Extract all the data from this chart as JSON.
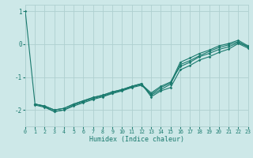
{
  "xlabel": "Humidex (Indice chaleur)",
  "x_ticks": [
    0,
    1,
    2,
    3,
    4,
    5,
    6,
    7,
    8,
    9,
    10,
    11,
    12,
    13,
    14,
    15,
    16,
    17,
    18,
    19,
    20,
    21,
    22,
    23
  ],
  "ylim": [
    -2.5,
    1.2
  ],
  "xlim": [
    0,
    23
  ],
  "bg_color": "#cde8e8",
  "grid_color": "#aed0d0",
  "line_color": "#1a7a6e",
  "lines": [
    {
      "x": [
        0,
        1,
        2,
        3,
        4,
        5,
        6,
        7,
        8,
        9,
        10,
        11,
        12,
        13,
        14,
        15,
        16,
        17,
        18,
        19,
        20,
        21,
        22,
        23
      ],
      "y": [
        1.0,
        -1.82,
        -1.9,
        -2.05,
        -2.0,
        -1.85,
        -1.75,
        -1.65,
        -1.58,
        -1.48,
        -1.4,
        -1.3,
        -1.22,
        -1.48,
        -1.28,
        -1.15,
        -0.68,
        -0.55,
        -0.38,
        -0.28,
        -0.16,
        -0.08,
        0.05,
        -0.08
      ]
    },
    {
      "x": [
        1,
        2,
        3,
        4,
        5,
        6,
        7,
        8,
        9,
        10,
        11,
        12,
        13,
        14,
        15,
        16,
        17,
        18,
        19,
        20,
        21,
        22,
        23
      ],
      "y": [
        -1.82,
        -1.88,
        -2.0,
        -1.95,
        -1.82,
        -1.72,
        -1.62,
        -1.55,
        -1.45,
        -1.38,
        -1.28,
        -1.2,
        -1.6,
        -1.42,
        -1.32,
        -0.78,
        -0.65,
        -0.48,
        -0.38,
        -0.25,
        -0.15,
        0.02,
        -0.12
      ]
    },
    {
      "x": [
        1,
        2,
        3,
        4,
        5,
        6,
        7,
        8,
        9,
        10,
        11,
        12,
        13,
        14,
        15,
        16,
        17,
        18,
        19,
        20,
        21,
        22,
        23
      ],
      "y": [
        -1.82,
        -1.88,
        -2.0,
        -1.95,
        -1.82,
        -1.72,
        -1.62,
        -1.55,
        -1.45,
        -1.38,
        -1.28,
        -1.2,
        -1.55,
        -1.38,
        -1.22,
        -0.62,
        -0.5,
        -0.35,
        -0.22,
        -0.1,
        -0.02,
        0.08,
        -0.08
      ]
    },
    {
      "x": [
        1,
        2,
        3,
        4,
        5,
        6,
        7,
        8,
        9,
        10,
        11,
        12,
        13,
        14,
        15,
        16,
        17,
        18,
        19,
        20,
        21,
        22,
        23
      ],
      "y": [
        -1.85,
        -1.92,
        -2.05,
        -2.0,
        -1.88,
        -1.78,
        -1.68,
        -1.6,
        -1.5,
        -1.42,
        -1.32,
        -1.25,
        -1.52,
        -1.32,
        -1.18,
        -0.55,
        -0.42,
        -0.28,
        -0.18,
        -0.05,
        0.02,
        0.12,
        -0.05
      ]
    }
  ]
}
